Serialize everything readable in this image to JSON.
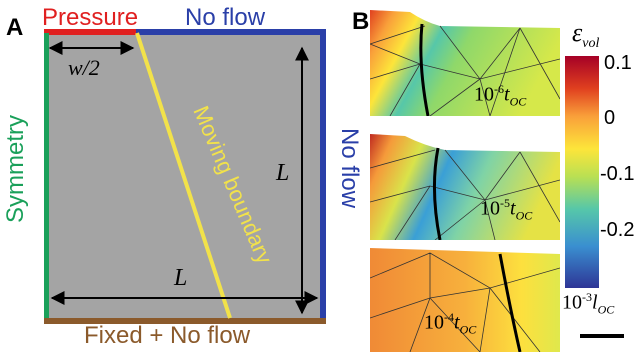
{
  "panel_a": {
    "letter": "A",
    "top_left_label": "Pressure",
    "top_right_label": "No flow",
    "right_label": "No flow",
    "left_label": "Symmetry",
    "bottom_label": "Fixed + No flow",
    "boundary_label": "Moving boundary",
    "dim_half_width": "w/2",
    "dim_height": "L",
    "dim_width": "L",
    "colors": {
      "pressure": "#e02020",
      "no_flow": "#2a3fa8",
      "symmetry": "#1aa05a",
      "fixed": "#8b5a2b",
      "moving_boundary": "#f2e24a",
      "domain": "#a4a4a4"
    }
  },
  "panel_b": {
    "letter": "B",
    "colorbar_symbol": "ε",
    "colorbar_subscript": "vol",
    "colorbar_ticks": [
      "0.1",
      "0",
      "-0.1",
      "-0.2"
    ],
    "snapshots": [
      {
        "base": "10",
        "exp": "-6",
        "var": "t",
        "sub": "OC"
      },
      {
        "base": "10",
        "exp": "-5",
        "var": "t",
        "sub": "OC"
      },
      {
        "base": "10",
        "exp": "-4",
        "var": "t",
        "sub": "OC"
      }
    ],
    "scale_bar": {
      "base": "10",
      "exp": "-3",
      "var": "l",
      "sub": "OC"
    }
  }
}
